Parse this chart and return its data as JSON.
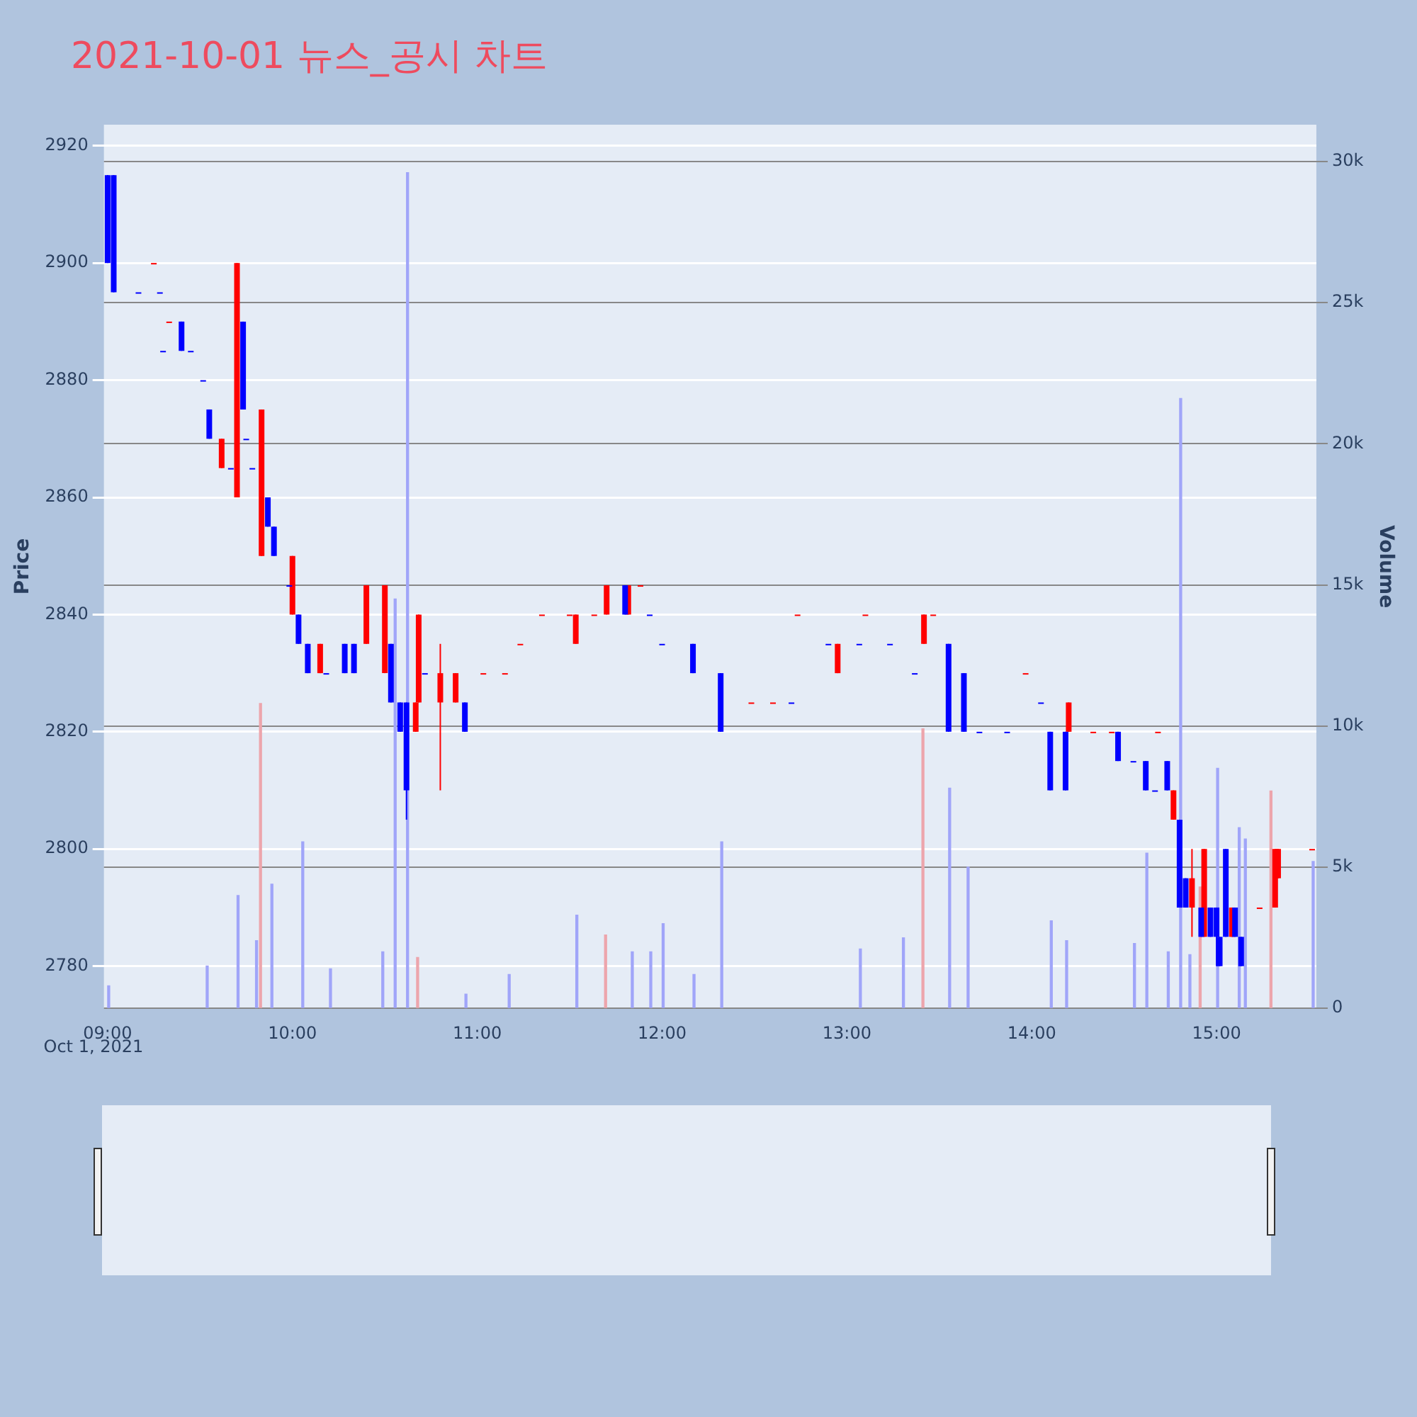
{
  "chart_data": {
    "type": "candlestick",
    "title": "2021-10-01 뉴스_공시 차트",
    "ylabel": "Price",
    "y2label": "Volume",
    "annotations": [
      "Oct 1, 2021"
    ],
    "xlim": [
      8.98,
      15.54
    ],
    "xticks": [
      {
        "value": 9,
        "label": "09:00"
      },
      {
        "value": 10,
        "label": "10:00"
      },
      {
        "value": 11,
        "label": "11:00"
      },
      {
        "value": 12,
        "label": "12:00"
      },
      {
        "value": 13,
        "label": "13:00"
      },
      {
        "value": 14,
        "label": "14:00"
      },
      {
        "value": 15,
        "label": "15:00"
      }
    ],
    "ylim": [
      2772.8,
      2923.6
    ],
    "yticks": [
      2780,
      2800,
      2820,
      2840,
      2860,
      2880,
      2900,
      2920
    ],
    "y2lim": [
      0,
      31300
    ],
    "y2ticks": [
      0,
      {
        "value": 5000,
        "label": "5k"
      },
      {
        "value": 10000,
        "label": "10k"
      },
      {
        "value": 15000,
        "label": "15k"
      },
      {
        "value": 20000,
        "label": "20k"
      },
      {
        "value": 25000,
        "label": "25k"
      },
      {
        "value": 30000,
        "label": "30k"
      }
    ],
    "grid": "y",
    "series": [
      {
        "color": "#ff0000",
        "x": [
          9.25,
          9.333,
          9.617,
          9.7,
          9.833,
          10.0,
          10.15,
          10.4,
          10.5,
          10.667,
          10.683,
          10.8,
          10.883,
          11.033,
          11.15,
          11.233,
          11.35,
          11.5,
          11.533,
          11.633,
          11.7,
          11.817,
          11.883,
          12.483,
          12.6,
          12.733,
          12.95,
          13.1,
          13.417,
          13.467,
          13.967,
          14.2,
          14.333,
          14.433,
          14.683,
          14.767,
          14.867,
          14.933,
          15.083,
          15.233,
          15.317,
          15.333,
          15.517
        ],
        "ohlc": [
          [
            2900,
            2900,
            2900,
            2900
          ],
          [
            2890,
            2890,
            2890,
            2890
          ],
          [
            2865,
            2870,
            2865,
            2870
          ],
          [
            2860,
            2900,
            2860,
            2900
          ],
          [
            2850,
            2875,
            2850,
            2875
          ],
          [
            2840,
            2850,
            2840,
            2850
          ],
          [
            2830,
            2835,
            2830,
            2835
          ],
          [
            2835,
            2845,
            2835,
            2845
          ],
          [
            2830,
            2845,
            2830,
            2845
          ],
          [
            2820,
            2825,
            2820,
            2825
          ],
          [
            2825,
            2840,
            2825,
            2840
          ],
          [
            2825,
            2835,
            2810,
            2830
          ],
          [
            2825,
            2830,
            2825,
            2830
          ],
          [
            2830,
            2830,
            2830,
            2830
          ],
          [
            2830,
            2830,
            2830,
            2830
          ],
          [
            2835,
            2835,
            2835,
            2835
          ],
          [
            2840,
            2840,
            2840,
            2840
          ],
          [
            2840,
            2840,
            2840,
            2840
          ],
          [
            2835,
            2840,
            2835,
            2840
          ],
          [
            2840,
            2840,
            2840,
            2840
          ],
          [
            2840,
            2845,
            2840,
            2845
          ],
          [
            2840,
            2845,
            2840,
            2845
          ],
          [
            2845,
            2845,
            2845,
            2845
          ],
          [
            2825,
            2825,
            2825,
            2825
          ],
          [
            2825,
            2825,
            2825,
            2825
          ],
          [
            2840,
            2840,
            2840,
            2840
          ],
          [
            2830,
            2835,
            2830,
            2835
          ],
          [
            2840,
            2840,
            2840,
            2840
          ],
          [
            2835,
            2840,
            2835,
            2840
          ],
          [
            2840,
            2840,
            2840,
            2840
          ],
          [
            2830,
            2830,
            2830,
            2830
          ],
          [
            2820,
            2825,
            2820,
            2825
          ],
          [
            2820,
            2820,
            2820,
            2820
          ],
          [
            2820,
            2820,
            2820,
            2820
          ],
          [
            2820,
            2820,
            2820,
            2820
          ],
          [
            2805,
            2810,
            2805,
            2810
          ],
          [
            2790,
            2800,
            2785,
            2795
          ],
          [
            2785,
            2800,
            2785,
            2800
          ],
          [
            2785,
            2790,
            2785,
            2790
          ],
          [
            2790,
            2790,
            2790,
            2790
          ],
          [
            2790,
            2800,
            2790,
            2800
          ],
          [
            2795,
            2800,
            2795,
            2800
          ],
          [
            2800,
            2800,
            2800,
            2800
          ]
        ]
      },
      {
        "color": "#0000ff",
        "x": [
          9.0,
          9.033,
          9.167,
          9.283,
          9.3,
          9.4,
          9.45,
          9.517,
          9.55,
          9.667,
          9.733,
          9.75,
          9.783,
          9.867,
          9.9,
          9.983,
          10.033,
          10.083,
          10.183,
          10.283,
          10.333,
          10.533,
          10.583,
          10.617,
          10.717,
          10.933,
          11.8,
          11.933,
          12.0,
          12.167,
          12.317,
          12.7,
          12.9,
          13.067,
          13.233,
          13.367,
          13.55,
          13.633,
          13.717,
          13.867,
          14.05,
          14.1,
          14.183,
          14.467,
          14.55,
          14.617,
          14.667,
          14.733,
          14.8,
          14.833,
          14.917,
          14.967,
          15.0,
          15.017,
          15.05,
          15.1,
          15.133
        ],
        "ohlc": [
          [
            2915,
            2915,
            2900,
            2900
          ],
          [
            2915,
            2915,
            2895,
            2895
          ],
          [
            2895,
            2895,
            2895,
            2895
          ],
          [
            2895,
            2895,
            2895,
            2895
          ],
          [
            2885,
            2885,
            2885,
            2885
          ],
          [
            2890,
            2890,
            2885,
            2885
          ],
          [
            2885,
            2885,
            2885,
            2885
          ],
          [
            2880,
            2880,
            2880,
            2880
          ],
          [
            2875,
            2875,
            2870,
            2870
          ],
          [
            2865,
            2865,
            2865,
            2865
          ],
          [
            2890,
            2890,
            2875,
            2875
          ],
          [
            2870,
            2870,
            2870,
            2870
          ],
          [
            2865,
            2865,
            2865,
            2865
          ],
          [
            2860,
            2860,
            2855,
            2855
          ],
          [
            2855,
            2855,
            2850,
            2850
          ],
          [
            2845,
            2845,
            2845,
            2845
          ],
          [
            2840,
            2840,
            2835,
            2835
          ],
          [
            2835,
            2835,
            2830,
            2830
          ],
          [
            2830,
            2830,
            2830,
            2830
          ],
          [
            2835,
            2835,
            2830,
            2830
          ],
          [
            2835,
            2835,
            2830,
            2830
          ],
          [
            2835,
            2835,
            2825,
            2825
          ],
          [
            2825,
            2825,
            2820,
            2820
          ],
          [
            2825,
            2825,
            2805,
            2810
          ],
          [
            2830,
            2830,
            2830,
            2830
          ],
          [
            2825,
            2825,
            2820,
            2820
          ],
          [
            2845,
            2845,
            2840,
            2840
          ],
          [
            2840,
            2840,
            2840,
            2840
          ],
          [
            2835,
            2835,
            2835,
            2835
          ],
          [
            2835,
            2835,
            2830,
            2830
          ],
          [
            2830,
            2830,
            2820,
            2820
          ],
          [
            2825,
            2825,
            2825,
            2825
          ],
          [
            2835,
            2835,
            2835,
            2835
          ],
          [
            2835,
            2835,
            2835,
            2835
          ],
          [
            2835,
            2835,
            2835,
            2835
          ],
          [
            2830,
            2830,
            2830,
            2830
          ],
          [
            2835,
            2835,
            2820,
            2820
          ],
          [
            2830,
            2830,
            2820,
            2820
          ],
          [
            2820,
            2820,
            2820,
            2820
          ],
          [
            2820,
            2820,
            2820,
            2820
          ],
          [
            2825,
            2825,
            2825,
            2825
          ],
          [
            2820,
            2820,
            2810,
            2810
          ],
          [
            2820,
            2820,
            2810,
            2810
          ],
          [
            2820,
            2820,
            2815,
            2815
          ],
          [
            2815,
            2815,
            2815,
            2815
          ],
          [
            2815,
            2815,
            2810,
            2810
          ],
          [
            2810,
            2810,
            2810,
            2810
          ],
          [
            2815,
            2815,
            2810,
            2810
          ],
          [
            2805,
            2805,
            2790,
            2790
          ],
          [
            2795,
            2795,
            2790,
            2790
          ],
          [
            2790,
            2790,
            2785,
            2785
          ],
          [
            2790,
            2790,
            2785,
            2785
          ],
          [
            2790,
            2790,
            2780,
            2785
          ],
          [
            2785,
            2785,
            2780,
            2780
          ],
          [
            2800,
            2800,
            2785,
            2785
          ],
          [
            2790,
            2790,
            2785,
            2785
          ],
          [
            2785,
            2785,
            2780,
            2780
          ]
        ]
      },
      {
        "type": "bar",
        "axis": "y2",
        "color": "#eda5ac",
        "x": [
          9.833,
          10.683,
          11.7,
          13.417,
          14.917,
          15.3
        ],
        "values": [
          10800,
          1800,
          2600,
          9900,
          4300,
          7700
        ]
      },
      {
        "type": "bar",
        "axis": "y2",
        "color": "#a0a5f9",
        "x": [
          9.0,
          9.533,
          9.7,
          9.8,
          9.883,
          10.05,
          10.2,
          10.483,
          10.55,
          10.617,
          10.933,
          11.167,
          11.533,
          11.833,
          11.933,
          12.0,
          12.167,
          12.317,
          13.067,
          13.3,
          13.55,
          13.65,
          14.1,
          14.183,
          14.55,
          14.617,
          14.733,
          14.8,
          14.85,
          15.0,
          15.117,
          15.15,
          15.517
        ],
        "values": [
          800,
          1500,
          4000,
          2400,
          4400,
          5900,
          1400,
          2000,
          14500,
          29600,
          500,
          1200,
          3300,
          2000,
          2000,
          3000,
          1200,
          5900,
          2100,
          2500,
          7800,
          5000,
          3100,
          2400,
          2300,
          5500,
          2000,
          21600,
          1900,
          8500,
          6400,
          6000,
          5200
        ]
      }
    ]
  }
}
